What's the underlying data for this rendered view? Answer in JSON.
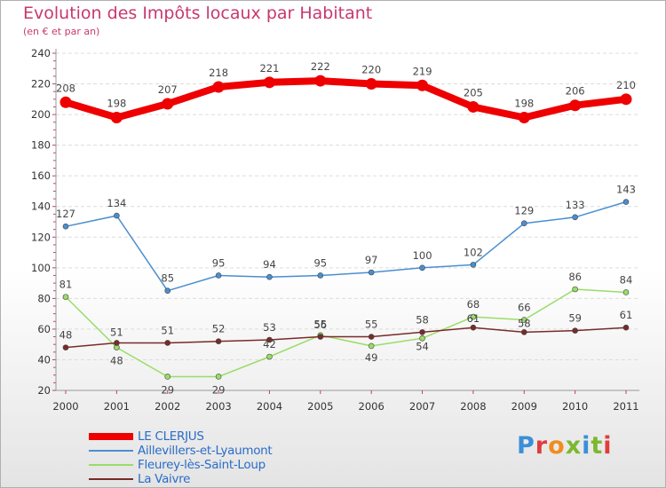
{
  "title": "Evolution des Impôts locaux par Habitant",
  "subtitle": "(en € et par an)",
  "brand": "Proxiti",
  "chart_data": {
    "type": "line",
    "title": "Evolution des Impôts locaux par Habitant",
    "subtitle": "(en € et par an)",
    "x": [
      2000,
      2001,
      2002,
      2003,
      2004,
      2005,
      2006,
      2007,
      2008,
      2009,
      2010,
      2011
    ],
    "ylim": [
      20,
      240
    ],
    "yticks": [
      20,
      40,
      60,
      80,
      100,
      120,
      140,
      160,
      180,
      200,
      220,
      240
    ],
    "grid": "horizontal",
    "legend_position": "bottom-left",
    "series": [
      {
        "name": "LE CLERJUS",
        "color": "#ee0000",
        "values": [
          208,
          198,
          207,
          218,
          221,
          222,
          220,
          219,
          205,
          198,
          206,
          210
        ]
      },
      {
        "name": "Aillevillers-et-Lyaumont",
        "color": "#4a8fd0",
        "values": [
          127,
          134,
          85,
          95,
          94,
          95,
          97,
          100,
          102,
          129,
          133,
          143
        ]
      },
      {
        "name": "Fleurey-lès-Saint-Loup",
        "color": "#99dd66",
        "values": [
          81,
          48,
          29,
          29,
          42,
          56,
          49,
          54,
          68,
          66,
          86,
          84
        ]
      },
      {
        "name": "La Vaivre",
        "color": "#7a2a2a",
        "values": [
          48,
          51,
          51,
          52,
          53,
          55,
          55,
          58,
          61,
          58,
          59,
          61
        ]
      }
    ]
  }
}
